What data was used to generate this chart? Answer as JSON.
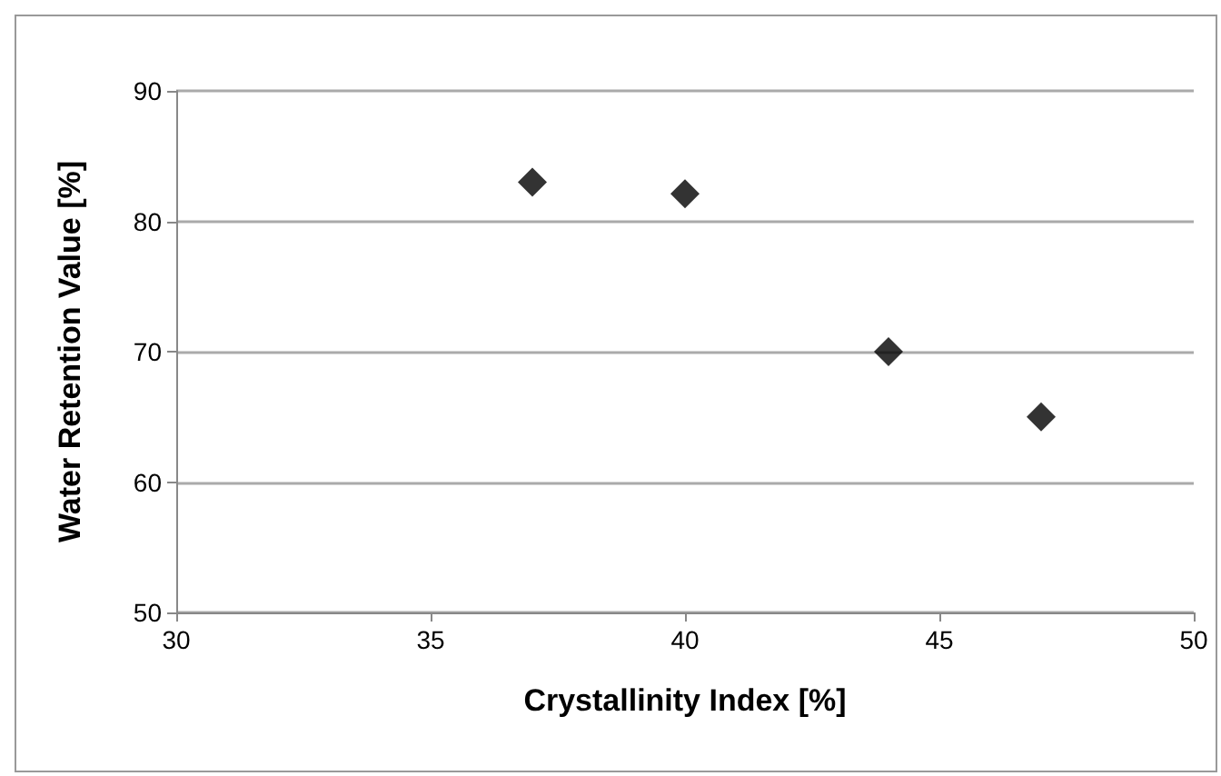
{
  "chart_data": {
    "type": "scatter",
    "xlabel": "Crystallinity Index [%]",
    "ylabel": "Water Retention Value [%]",
    "x": [
      37,
      40,
      44,
      47
    ],
    "series": [
      {
        "color": "#000000",
        "values": [
          83,
          82.1,
          70,
          65
        ]
      }
    ],
    "xlim": [
      30,
      50
    ],
    "xticks": [
      30,
      35,
      40,
      45,
      50
    ],
    "ylim": [
      50,
      90
    ],
    "yticks": [
      50,
      60,
      70,
      80,
      90
    ],
    "grid": "y",
    "marker": "diamond"
  }
}
